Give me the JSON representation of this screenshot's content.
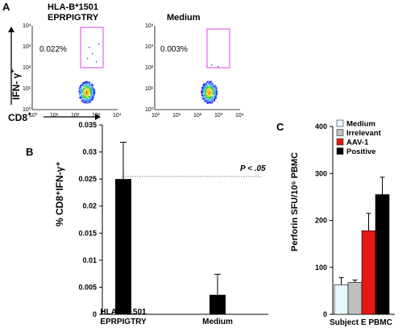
{
  "panels": {
    "A": "A",
    "B": "B",
    "C": "C"
  },
  "panel_a": {
    "plots": [
      {
        "title_line1": "HLA-B*1501",
        "title_line2": "EPRPIGTRY",
        "gate_percent": "0.022%"
      },
      {
        "title_line1": "",
        "title_line2": "Medium",
        "gate_percent": "0.003%"
      }
    ],
    "axis_ticks": [
      "10⁰",
      "10¹",
      "10²",
      "10³",
      "10⁴"
    ],
    "y_axis_label": "IFN- γ",
    "y_axis_sup": "+",
    "x_axis_label": "CD8",
    "x_axis_sup": "+",
    "gate_color": "#e040e0"
  },
  "chart_data": [
    {
      "type": "bar",
      "panel": "B",
      "categories": [
        "HLA-B*1501 EPRPIGTRY",
        "Medium"
      ],
      "category_lines": [
        [
          "HLA-B*1501",
          "EPRPIGTRY"
        ],
        [
          "",
          "Medium"
        ]
      ],
      "values": [
        0.025,
        0.0036
      ],
      "errors": [
        0.0068,
        0.0038
      ],
      "ylabel": "% CD8⁺IFN-γ⁺",
      "ylim": [
        0,
        0.035
      ],
      "yticks": [
        "0",
        "0.005",
        "0.01",
        "0.015",
        "0.02",
        "0.025",
        "0.03",
        "0.035"
      ],
      "annotation": "P < .05",
      "bar_color": "#000000"
    },
    {
      "type": "bar",
      "panel": "C",
      "categories": [
        "Medium",
        "Irrelevant",
        "AAV-1",
        "Positive"
      ],
      "values": [
        63,
        68,
        178,
        255
      ],
      "errors": [
        15,
        5,
        37,
        37
      ],
      "colors": [
        "#e6f7fd",
        "#bfbfbf",
        "#e51616",
        "#000000"
      ],
      "xlabel": "Subject E PBMC",
      "ylabel": "Perforin SFU/10⁶ PBMC",
      "ylim": [
        0,
        400
      ],
      "yticks": [
        "0",
        "100",
        "200",
        "300",
        "400"
      ],
      "legend": [
        "Medium",
        "Irrelevant",
        "AAV-1",
        "Positive"
      ],
      "legend_position": "top-left"
    }
  ]
}
